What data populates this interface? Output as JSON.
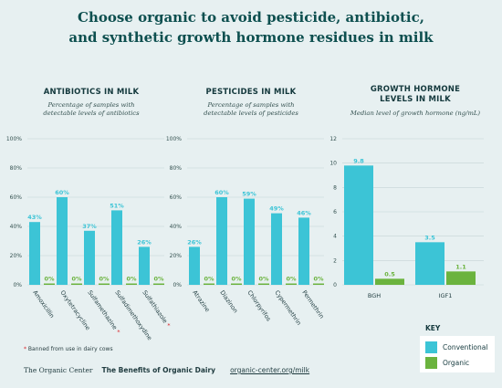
{
  "title_line1": "Choose organic to avoid pesticide, antibiotic,",
  "title_line2": "and synthetic growth hormone residues in milk",
  "colors": {
    "conventional": "#3cc4d6",
    "organic": "#6bb33e",
    "grid": "#c6d3d5",
    "star": "#d9252a"
  },
  "chart_data": [
    {
      "type": "bar",
      "title": "ANTIBIOTICS IN MILK",
      "subtitle_line1": "Percentage of samples with",
      "subtitle_line2": "detectable levels of antibiotics",
      "categories": [
        "Amoxicillin",
        "Oxytetracycline",
        "Sulfamethazine",
        "Sulfadimethoxydine",
        "Sulfathiazole"
      ],
      "starred": [
        false,
        false,
        true,
        false,
        true
      ],
      "series": [
        {
          "name": "Conventional",
          "values": [
            43,
            60,
            37,
            51,
            26
          ],
          "labels": [
            "43%",
            "60%",
            "37%",
            "51%",
            "26%"
          ]
        },
        {
          "name": "Organic",
          "values": [
            0,
            0,
            0,
            0,
            0
          ],
          "labels": [
            "0%",
            "0%",
            "0%",
            "0%",
            "0%"
          ]
        }
      ],
      "yticks": [
        "0%",
        "20%",
        "40%",
        "60%",
        "80%",
        "100%"
      ],
      "ylim": [
        0,
        100
      ]
    },
    {
      "type": "bar",
      "title": "PESTICIDES IN MILK",
      "subtitle_line1": "Percentage of samples with",
      "subtitle_line2": "detectable levels of pesticides",
      "categories": [
        "Atrazine",
        "Diazinon",
        "Chlorpyrifos",
        "Cypermethrin",
        "Permethrin"
      ],
      "starred": [
        false,
        false,
        false,
        false,
        false
      ],
      "series": [
        {
          "name": "Conventional",
          "values": [
            26,
            60,
            59,
            49,
            46
          ],
          "labels": [
            "26%",
            "60%",
            "59%",
            "49%",
            "46%"
          ]
        },
        {
          "name": "Organic",
          "values": [
            0,
            0,
            0,
            0,
            0
          ],
          "labels": [
            "0%",
            "0%",
            "0%",
            "0%",
            "0%"
          ]
        }
      ],
      "yticks": [
        "0%",
        "20%",
        "40%",
        "60%",
        "80%",
        "100%"
      ],
      "ylim": [
        0,
        100
      ]
    },
    {
      "type": "bar",
      "title_line1": "GROWTH HORMONE",
      "title_line2": "LEVELS IN MILK",
      "subtitle": "Median level of growth hormone (ng/mL)",
      "categories": [
        "BGH",
        "IGF1"
      ],
      "starred": [
        false,
        false
      ],
      "series": [
        {
          "name": "Conventional",
          "values": [
            9.8,
            3.5
          ],
          "labels": [
            "9.8",
            "3.5"
          ]
        },
        {
          "name": "Organic",
          "values": [
            0.5,
            1.1
          ],
          "labels": [
            "0.5",
            "1.1"
          ]
        }
      ],
      "yticks": [
        "0",
        "2",
        "4",
        "6",
        "8",
        "10",
        "12"
      ],
      "ylim": [
        0,
        12
      ]
    }
  ],
  "footnote": "Banned from use in dairy cows",
  "key": {
    "title": "KEY",
    "conventional": "Conventional",
    "organic": "Organic"
  },
  "footer": {
    "org": "The Organic Center",
    "benefits": "The Benefits of Organic Dairy",
    "link": "organic-center.org/milk"
  }
}
